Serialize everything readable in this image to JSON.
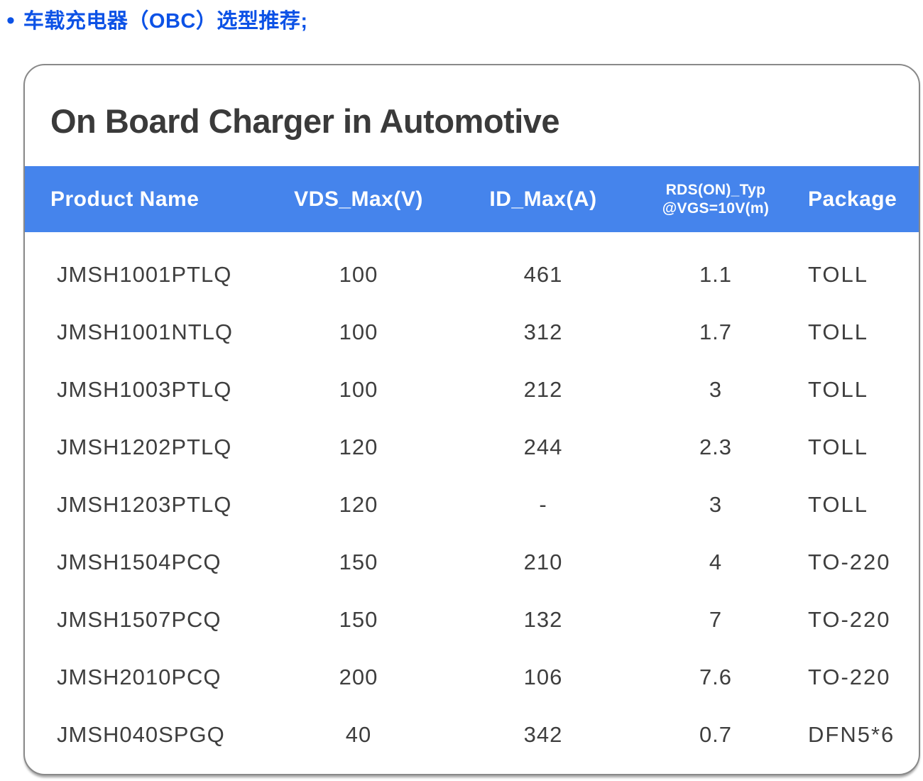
{
  "heading": {
    "bullet": "•",
    "text": "车载充电器（OBC）选型推荐;"
  },
  "card": {
    "title": "On Board Charger in Automotive",
    "table": {
      "columns": {
        "product": "Product Name",
        "vds": "VDS_Max(V)",
        "id": "ID_Max(A)",
        "rds_line1": "RDS(ON)_Typ",
        "rds_line2": "@VGS=10V(m)",
        "package": "Package"
      },
      "rows": [
        [
          "JMSH1001PTLQ",
          "100",
          "461",
          "1.1",
          "TOLL"
        ],
        [
          "JMSH1001NTLQ",
          "100",
          "312",
          "1.7",
          "TOLL"
        ],
        [
          "JMSH1003PTLQ",
          "100",
          "212",
          "3",
          "TOLL"
        ],
        [
          "JMSH1202PTLQ",
          "120",
          "244",
          "2.3",
          "TOLL"
        ],
        [
          "JMSH1203PTLQ",
          "120",
          "-",
          "3",
          "TOLL"
        ],
        [
          "JMSH1504PCQ",
          "150",
          "210",
          "4",
          "TO-220"
        ],
        [
          "JMSH1507PCQ",
          "150",
          "132",
          "7",
          "TO-220"
        ],
        [
          "JMSH2010PCQ",
          "200",
          "106",
          "7.6",
          "TO-220"
        ],
        [
          "JMSH040SPGQ",
          "40",
          "342",
          "0.7",
          "DFN5*6"
        ]
      ]
    }
  },
  "colors": {
    "header_bg": "#4584EC",
    "heading_text": "#0C52E6",
    "title_text": "#3A3A3A",
    "cell_text": "#3E3E3E",
    "card_border": "#898989"
  }
}
